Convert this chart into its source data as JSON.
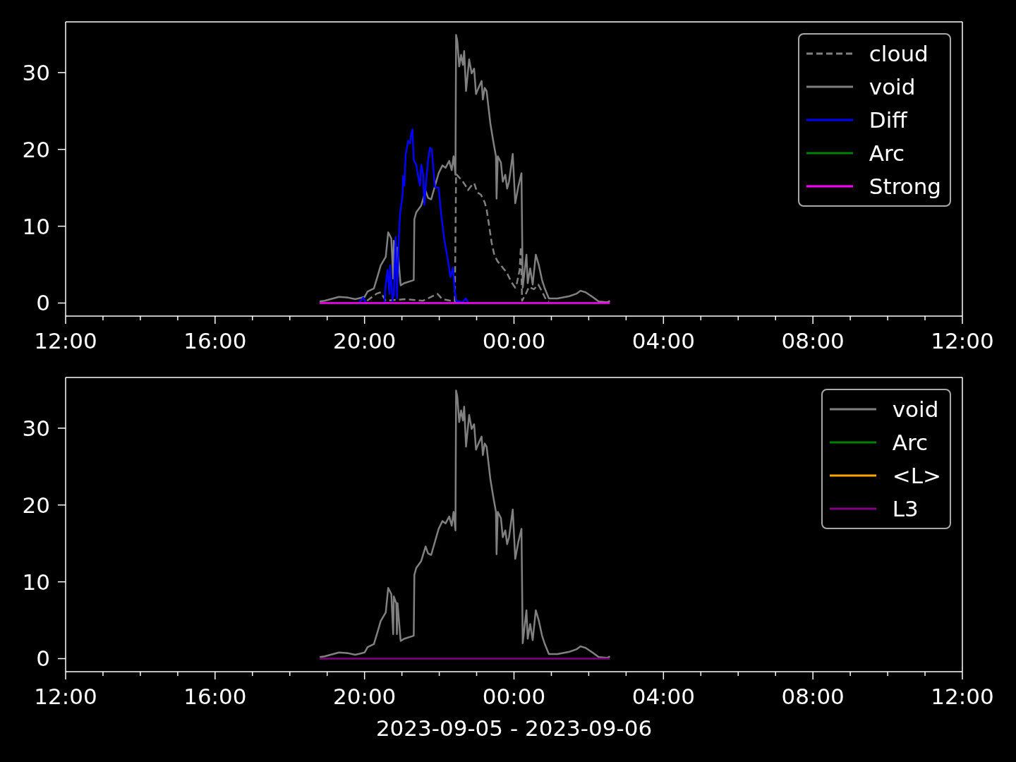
{
  "chart_data": [
    {
      "type": "line",
      "xlim": [
        "2023-09-05T12:00",
        "2023-09-06T12:00"
      ],
      "xticks": [
        {
          "value": "2023-09-05T12:00",
          "label": "12:00"
        },
        {
          "value": "2023-09-05T13:00",
          "label": null
        },
        {
          "value": "2023-09-05T14:00",
          "label": null
        },
        {
          "value": "2023-09-05T15:00",
          "label": null
        },
        {
          "value": "2023-09-05T16:00",
          "label": "16:00"
        },
        {
          "value": "2023-09-05T17:00",
          "label": null
        },
        {
          "value": "2023-09-05T18:00",
          "label": null
        },
        {
          "value": "2023-09-05T19:00",
          "label": null
        },
        {
          "value": "2023-09-05T20:00",
          "label": "20:00"
        },
        {
          "value": "2023-09-05T21:00",
          "label": null
        },
        {
          "value": "2023-09-05T22:00",
          "label": null
        },
        {
          "value": "2023-09-05T23:00",
          "label": null
        },
        {
          "value": "2023-09-06T00:00",
          "label": "00:00"
        },
        {
          "value": "2023-09-06T01:00",
          "label": null
        },
        {
          "value": "2023-09-06T02:00",
          "label": null
        },
        {
          "value": "2023-09-06T03:00",
          "label": null
        },
        {
          "value": "2023-09-06T04:00",
          "label": "04:00"
        },
        {
          "value": "2023-09-06T05:00",
          "label": null
        },
        {
          "value": "2023-09-06T06:00",
          "label": null
        },
        {
          "value": "2023-09-06T07:00",
          "label": null
        },
        {
          "value": "2023-09-06T08:00",
          "label": "08:00"
        },
        {
          "value": "2023-09-06T09:00",
          "label": null
        },
        {
          "value": "2023-09-06T10:00",
          "label": null
        },
        {
          "value": "2023-09-06T11:00",
          "label": null
        },
        {
          "value": "2023-09-06T12:00",
          "label": "12:00"
        }
      ],
      "ylim": [
        -1.7,
        36.6
      ],
      "yticks": [
        0,
        10,
        20,
        30
      ],
      "legend": "top right",
      "series": [
        {
          "name": "cloud",
          "color": "#808080",
          "line_style": "dashed",
          "x": [
            "2023-09-05T20:04",
            "2023-09-05T20:19",
            "2023-09-05T20:26",
            "2023-09-05T20:34",
            "2023-09-05T21:04",
            "2023-09-05T21:34",
            "2023-09-05T21:57",
            "2023-09-05T22:05",
            "2023-09-05T22:25",
            "2023-09-05T22:27",
            "2023-09-05T22:37",
            "2023-09-05T22:42",
            "2023-09-05T22:46",
            "2023-09-05T22:52",
            "2023-09-05T22:56",
            "2023-09-05T23:01",
            "2023-09-05T23:07",
            "2023-09-05T23:13",
            "2023-09-05T23:16",
            "2023-09-05T23:20",
            "2023-09-05T23:24",
            "2023-09-05T23:28",
            "2023-09-05T23:33",
            "2023-09-05T23:39",
            "2023-09-05T23:45",
            "2023-09-05T23:50",
            "2023-09-05T23:56",
            "2023-09-06T00:02",
            "2023-09-06T00:05",
            "2023-09-06T00:09",
            "2023-09-06T00:11",
            "2023-09-06T00:13",
            "2023-09-06T00:19",
            "2023-09-06T00:24",
            "2023-09-06T00:32",
            "2023-09-06T00:39",
            "2023-09-06T00:45",
            "2023-09-06T00:51",
            "2023-09-06T00:56"
          ],
          "values": [
            0.3,
            1.2,
            1.4,
            0.3,
            0.5,
            0.3,
            1.2,
            0.5,
            0.2,
            16.8,
            15.9,
            15.3,
            14.7,
            15.3,
            15.6,
            14.4,
            14.1,
            13.1,
            12.2,
            10.1,
            7.9,
            6.4,
            5.5,
            4.9,
            4.3,
            3.7,
            2.7,
            2.0,
            2.7,
            4.3,
            7.3,
            0.3,
            1.2,
            2.1,
            1.8,
            2.4,
            1.5,
            0.5,
            0.2
          ]
        },
        {
          "name": "void",
          "color": "#808080",
          "x": [
            "2023-09-05T18:48",
            "2023-09-05T18:56",
            "2023-09-05T19:19",
            "2023-09-05T19:34",
            "2023-09-05T19:45",
            "2023-09-05T20:00",
            "2023-09-05T20:05",
            "2023-09-05T20:15",
            "2023-09-05T20:21",
            "2023-09-05T20:26",
            "2023-09-05T20:34",
            "2023-09-05T20:38",
            "2023-09-05T20:43",
            "2023-09-05T20:46",
            "2023-09-05T20:47",
            "2023-09-05T20:51",
            "2023-09-05T20:52",
            "2023-09-05T20:53",
            "2023-09-05T20:58",
            "2023-09-05T21:04",
            "2023-09-05T21:16",
            "2023-09-05T21:19",
            "2023-09-05T21:20",
            "2023-09-05T21:23",
            "2023-09-05T21:31",
            "2023-09-05T21:38",
            "2023-09-05T21:42",
            "2023-09-05T21:47",
            "2023-09-05T21:53",
            "2023-09-05T21:59",
            "2023-09-05T22:05",
            "2023-09-05T22:10",
            "2023-09-05T22:16",
            "2023-09-05T22:20",
            "2023-09-05T22:23",
            "2023-09-05T22:26",
            "2023-09-05T22:27",
            "2023-09-05T22:29",
            "2023-09-05T22:32",
            "2023-09-05T22:35",
            "2023-09-05T22:38",
            "2023-09-05T22:40",
            "2023-09-05T22:43",
            "2023-09-05T22:48",
            "2023-09-05T22:52",
            "2023-09-05T22:56",
            "2023-09-05T22:59",
            "2023-09-05T23:03",
            "2023-09-05T23:08",
            "2023-09-05T23:10",
            "2023-09-05T23:13",
            "2023-09-05T23:16",
            "2023-09-05T23:22",
            "2023-09-05T23:26",
            "2023-09-05T23:31",
            "2023-09-05T23:32",
            "2023-09-05T23:34",
            "2023-09-05T23:39",
            "2023-09-05T23:42",
            "2023-09-05T23:46",
            "2023-09-05T23:49",
            "2023-09-05T23:52",
            "2023-09-05T23:58",
            "2023-09-06T00:02",
            "2023-09-06T00:07",
            "2023-09-06T00:12",
            "2023-09-06T00:14",
            "2023-09-06T00:20",
            "2023-09-06T00:22",
            "2023-09-06T00:26",
            "2023-09-06T00:30",
            "2023-09-06T00:35",
            "2023-09-06T00:40",
            "2023-09-06T00:45",
            "2023-09-06T00:49",
            "2023-09-06T00:56",
            "2023-09-06T01:10",
            "2023-09-06T01:29",
            "2023-09-06T01:40",
            "2023-09-06T01:47",
            "2023-09-06T01:55",
            "2023-09-06T02:06",
            "2023-09-06T02:16",
            "2023-09-06T02:30",
            "2023-09-06T02:34"
          ],
          "values": [
            0.2,
            0.3,
            0.8,
            0.7,
            0.5,
            0.8,
            1.5,
            1.9,
            3.5,
            4.9,
            6.0,
            9.2,
            8.4,
            3.2,
            8.1,
            7.2,
            3.2,
            7.2,
            2.3,
            2.6,
            2.9,
            3.0,
            10.9,
            11.8,
            12.7,
            14.6,
            13.7,
            13.5,
            15.2,
            16.9,
            17.9,
            17.6,
            18.5,
            17.3,
            19.1,
            16.7,
            34.9,
            34.1,
            30.8,
            32.3,
            31.0,
            32.8,
            27.6,
            31.7,
            29.9,
            30.5,
            27.2,
            28.0,
            28.9,
            26.5,
            28.0,
            27.6,
            23.4,
            21.4,
            19.1,
            13.6,
            19.1,
            18.3,
            15.8,
            16.7,
            14.9,
            15.8,
            19.4,
            13.0,
            15.2,
            16.9,
            2.0,
            6.3,
            2.6,
            4.5,
            2.4,
            6.3,
            4.9,
            3.0,
            2.0,
            0.6,
            0.6,
            0.9,
            1.2,
            1.6,
            1.4,
            0.8,
            0.2,
            0.1,
            0.3
          ]
        },
        {
          "name": "Diff",
          "color": "#0000ff",
          "x": [
            "2023-09-05T19:52",
            "2023-09-05T19:58",
            "2023-09-05T20:02",
            "2023-09-05T20:17",
            "2023-09-05T20:32",
            "2023-09-05T20:34",
            "2023-09-05T20:37",
            "2023-09-05T20:40",
            "2023-09-05T20:41",
            "2023-09-05T20:45",
            "2023-09-05T20:47",
            "2023-09-05T20:50",
            "2023-09-05T20:52",
            "2023-09-05T20:55",
            "2023-09-05T20:57",
            "2023-09-05T21:01",
            "2023-09-05T21:02",
            "2023-09-05T21:04",
            "2023-09-05T21:06",
            "2023-09-05T21:10",
            "2023-09-05T21:13",
            "2023-09-05T21:15",
            "2023-09-05T21:17",
            "2023-09-05T21:19",
            "2023-09-05T21:23",
            "2023-09-05T21:26",
            "2023-09-05T21:29",
            "2023-09-05T21:31",
            "2023-09-05T21:34",
            "2023-09-05T21:36",
            "2023-09-05T21:39",
            "2023-09-05T21:42",
            "2023-09-05T21:45",
            "2023-09-05T21:48",
            "2023-09-05T21:50",
            "2023-09-05T21:53",
            "2023-09-05T21:59",
            "2023-09-05T22:03",
            "2023-09-05T22:08",
            "2023-09-05T22:14",
            "2023-09-05T22:18",
            "2023-09-05T22:22",
            "2023-09-05T22:24",
            "2023-09-05T22:27",
            "2023-09-05T22:37",
            "2023-09-05T22:43",
            "2023-09-05T22:46"
          ],
          "values": [
            0.1,
            0.7,
            0.1,
            null,
            0.1,
            2.4,
            4.3,
            1.2,
            4.9,
            0.3,
            1.2,
            8.6,
            0.6,
            8.3,
            11.6,
            14.0,
            16.5,
            15.3,
            19.3,
            21.1,
            20.8,
            22.0,
            22.6,
            18.6,
            18.0,
            16.5,
            15.3,
            18.0,
            16.8,
            12.8,
            15.9,
            18.6,
            20.2,
            20.0,
            18.0,
            15.1,
            15.0,
            11.6,
            8.3,
            5.5,
            3.4,
            4.6,
            2.4,
            0.3,
            0.1,
            0.6,
            0.1
          ]
        },
        {
          "name": "Arc",
          "color": "#008000"
        },
        {
          "name": "Strong",
          "color": "#ff00ff",
          "x": [
            "2023-09-05T18:48",
            "2023-09-06T02:34"
          ],
          "values": [
            0,
            0
          ]
        }
      ]
    },
    {
      "type": "line",
      "xlabel": "2023-09-05 - 2023-09-06",
      "xlim": [
        "2023-09-05T12:00",
        "2023-09-06T12:00"
      ],
      "xticks": [
        {
          "value": "2023-09-05T12:00",
          "label": "12:00"
        },
        {
          "value": "2023-09-05T13:00",
          "label": null
        },
        {
          "value": "2023-09-05T14:00",
          "label": null
        },
        {
          "value": "2023-09-05T15:00",
          "label": null
        },
        {
          "value": "2023-09-05T16:00",
          "label": "16:00"
        },
        {
          "value": "2023-09-05T17:00",
          "label": null
        },
        {
          "value": "2023-09-05T18:00",
          "label": null
        },
        {
          "value": "2023-09-05T19:00",
          "label": null
        },
        {
          "value": "2023-09-05T20:00",
          "label": "20:00"
        },
        {
          "value": "2023-09-05T21:00",
          "label": null
        },
        {
          "value": "2023-09-05T22:00",
          "label": null
        },
        {
          "value": "2023-09-05T23:00",
          "label": null
        },
        {
          "value": "2023-09-06T00:00",
          "label": "00:00"
        },
        {
          "value": "2023-09-06T01:00",
          "label": null
        },
        {
          "value": "2023-09-06T02:00",
          "label": null
        },
        {
          "value": "2023-09-06T03:00",
          "label": null
        },
        {
          "value": "2023-09-06T04:00",
          "label": "04:00"
        },
        {
          "value": "2023-09-06T05:00",
          "label": null
        },
        {
          "value": "2023-09-06T06:00",
          "label": null
        },
        {
          "value": "2023-09-06T07:00",
          "label": null
        },
        {
          "value": "2023-09-06T08:00",
          "label": "08:00"
        },
        {
          "value": "2023-09-06T09:00",
          "label": null
        },
        {
          "value": "2023-09-06T10:00",
          "label": null
        },
        {
          "value": "2023-09-06T11:00",
          "label": null
        },
        {
          "value": "2023-09-06T12:00",
          "label": "12:00"
        }
      ],
      "ylim": [
        -1.7,
        36.6
      ],
      "yticks": [
        0,
        10,
        20,
        30
      ],
      "legend": "top right",
      "series": [
        {
          "name": "void",
          "color": "#808080",
          "x": [
            "2023-09-05T18:48",
            "2023-09-05T18:56",
            "2023-09-05T19:19",
            "2023-09-05T19:34",
            "2023-09-05T19:45",
            "2023-09-05T20:00",
            "2023-09-05T20:05",
            "2023-09-05T20:15",
            "2023-09-05T20:21",
            "2023-09-05T20:26",
            "2023-09-05T20:34",
            "2023-09-05T20:38",
            "2023-09-05T20:43",
            "2023-09-05T20:46",
            "2023-09-05T20:47",
            "2023-09-05T20:51",
            "2023-09-05T20:52",
            "2023-09-05T20:53",
            "2023-09-05T20:58",
            "2023-09-05T21:04",
            "2023-09-05T21:16",
            "2023-09-05T21:19",
            "2023-09-05T21:20",
            "2023-09-05T21:23",
            "2023-09-05T21:31",
            "2023-09-05T21:38",
            "2023-09-05T21:42",
            "2023-09-05T21:47",
            "2023-09-05T21:53",
            "2023-09-05T21:59",
            "2023-09-05T22:05",
            "2023-09-05T22:10",
            "2023-09-05T22:16",
            "2023-09-05T22:20",
            "2023-09-05T22:23",
            "2023-09-05T22:26",
            "2023-09-05T22:27",
            "2023-09-05T22:29",
            "2023-09-05T22:32",
            "2023-09-05T22:35",
            "2023-09-05T22:38",
            "2023-09-05T22:40",
            "2023-09-05T22:43",
            "2023-09-05T22:48",
            "2023-09-05T22:52",
            "2023-09-05T22:56",
            "2023-09-05T22:59",
            "2023-09-05T23:03",
            "2023-09-05T23:08",
            "2023-09-05T23:10",
            "2023-09-05T23:13",
            "2023-09-05T23:16",
            "2023-09-05T23:22",
            "2023-09-05T23:26",
            "2023-09-05T23:31",
            "2023-09-05T23:32",
            "2023-09-05T23:34",
            "2023-09-05T23:39",
            "2023-09-05T23:42",
            "2023-09-05T23:46",
            "2023-09-05T23:49",
            "2023-09-05T23:52",
            "2023-09-05T23:58",
            "2023-09-06T00:02",
            "2023-09-06T00:07",
            "2023-09-06T00:12",
            "2023-09-06T00:14",
            "2023-09-06T00:20",
            "2023-09-06T00:22",
            "2023-09-06T00:26",
            "2023-09-06T00:30",
            "2023-09-06T00:35",
            "2023-09-06T00:40",
            "2023-09-06T00:45",
            "2023-09-06T00:49",
            "2023-09-06T00:56",
            "2023-09-06T01:10",
            "2023-09-06T01:29",
            "2023-09-06T01:40",
            "2023-09-06T01:47",
            "2023-09-06T01:55",
            "2023-09-06T02:06",
            "2023-09-06T02:16",
            "2023-09-06T02:30",
            "2023-09-06T02:34"
          ],
          "values": [
            0.2,
            0.3,
            0.8,
            0.7,
            0.5,
            0.8,
            1.5,
            1.9,
            3.5,
            4.9,
            6.0,
            9.2,
            8.4,
            3.2,
            8.1,
            7.2,
            3.2,
            7.2,
            2.3,
            2.6,
            2.9,
            3.0,
            10.9,
            11.8,
            12.7,
            14.6,
            13.7,
            13.5,
            15.2,
            16.9,
            17.9,
            17.6,
            18.5,
            17.3,
            19.1,
            16.7,
            34.9,
            34.1,
            30.8,
            32.3,
            31.0,
            32.8,
            27.6,
            31.7,
            29.9,
            30.5,
            27.2,
            28.0,
            28.9,
            26.5,
            28.0,
            27.6,
            23.4,
            21.4,
            19.1,
            13.6,
            19.1,
            18.3,
            15.8,
            16.7,
            14.9,
            15.8,
            19.4,
            13.0,
            15.2,
            16.9,
            2.0,
            6.3,
            2.6,
            4.5,
            2.4,
            6.3,
            4.9,
            3.0,
            2.0,
            0.6,
            0.6,
            0.9,
            1.2,
            1.6,
            1.4,
            0.8,
            0.2,
            0.1,
            0.3
          ]
        },
        {
          "name": "Arc",
          "color": "#008000"
        },
        {
          "name": "<L>",
          "color": "#ffa500"
        },
        {
          "name": "L3",
          "color": "#800080",
          "x": [
            "2023-09-05T18:48",
            "2023-09-06T02:34"
          ],
          "values": [
            0,
            0
          ]
        }
      ]
    }
  ]
}
